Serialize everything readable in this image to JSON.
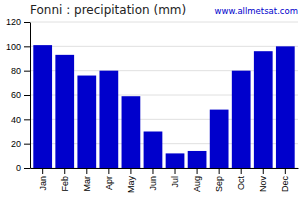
{
  "chart_data": {
    "type": "bar",
    "title": "Fonni : precipitation (mm)",
    "categories": [
      "Jan",
      "Feb",
      "Mar",
      "Apr",
      "May",
      "Jun",
      "Jul",
      "Aug",
      "Sep",
      "Oct",
      "Nov",
      "Dec"
    ],
    "values": [
      101,
      93,
      76,
      80,
      59,
      30,
      12,
      14,
      48,
      80,
      96,
      100
    ],
    "color": "#0000cc",
    "ylim": [
      0,
      120
    ],
    "yticks": [
      0,
      20,
      40,
      60,
      80,
      100,
      120
    ],
    "grid": true,
    "annotations": [
      "www.allmetsat.com"
    ]
  }
}
